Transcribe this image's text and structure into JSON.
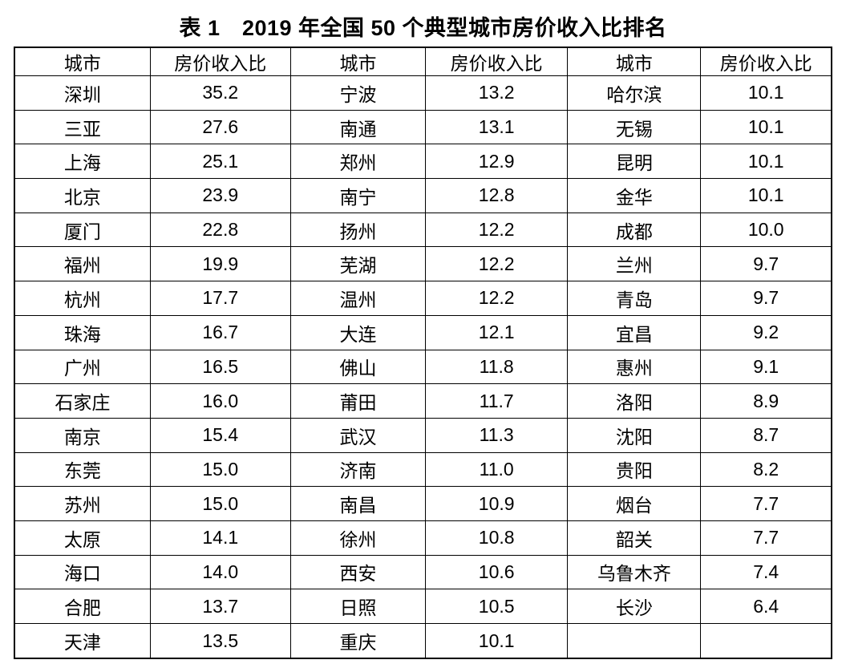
{
  "chart_data": {
    "type": "table",
    "title": "表 1　2019 年全国 50 个典型城市房价收入比排名",
    "year": "2019",
    "city_count": "50",
    "column_headers": [
      "城市",
      "房价收入比",
      "城市",
      "房价收入比",
      "城市",
      "房价收入比"
    ],
    "rows": [
      [
        "深圳",
        "35.2",
        "宁波",
        "13.2",
        "哈尔滨",
        "10.1"
      ],
      [
        "三亚",
        "27.6",
        "南通",
        "13.1",
        "无锡",
        "10.1"
      ],
      [
        "上海",
        "25.1",
        "郑州",
        "12.9",
        "昆明",
        "10.1"
      ],
      [
        "北京",
        "23.9",
        "南宁",
        "12.8",
        "金华",
        "10.1"
      ],
      [
        "厦门",
        "22.8",
        "扬州",
        "12.2",
        "成都",
        "10.0"
      ],
      [
        "福州",
        "19.9",
        "芜湖",
        "12.2",
        "兰州",
        "9.7"
      ],
      [
        "杭州",
        "17.7",
        "温州",
        "12.2",
        "青岛",
        "9.7"
      ],
      [
        "珠海",
        "16.7",
        "大连",
        "12.1",
        "宜昌",
        "9.2"
      ],
      [
        "广州",
        "16.5",
        "佛山",
        "11.8",
        "惠州",
        "9.1"
      ],
      [
        "石家庄",
        "16.0",
        "莆田",
        "11.7",
        "洛阳",
        "8.9"
      ],
      [
        "南京",
        "15.4",
        "武汉",
        "11.3",
        "沈阳",
        "8.7"
      ],
      [
        "东莞",
        "15.0",
        "济南",
        "11.0",
        "贵阳",
        "8.2"
      ],
      [
        "苏州",
        "15.0",
        "南昌",
        "10.9",
        "烟台",
        "7.7"
      ],
      [
        "太原",
        "14.1",
        "徐州",
        "10.8",
        "韶关",
        "7.7"
      ],
      [
        "海口",
        "14.0",
        "西安",
        "10.6",
        "乌鲁木齐",
        "7.4"
      ],
      [
        "合肥",
        "13.7",
        "日照",
        "10.5",
        "长沙",
        "6.4"
      ],
      [
        "天津",
        "13.5",
        "重庆",
        "10.1",
        "",
        ""
      ]
    ],
    "colors": {
      "text": "#000000",
      "border": "#000000",
      "background": "#ffffff"
    },
    "layout": {
      "columns": "three city/ratio pairs",
      "grid": "full black grid, thicker outer border",
      "alignment": "center"
    }
  }
}
